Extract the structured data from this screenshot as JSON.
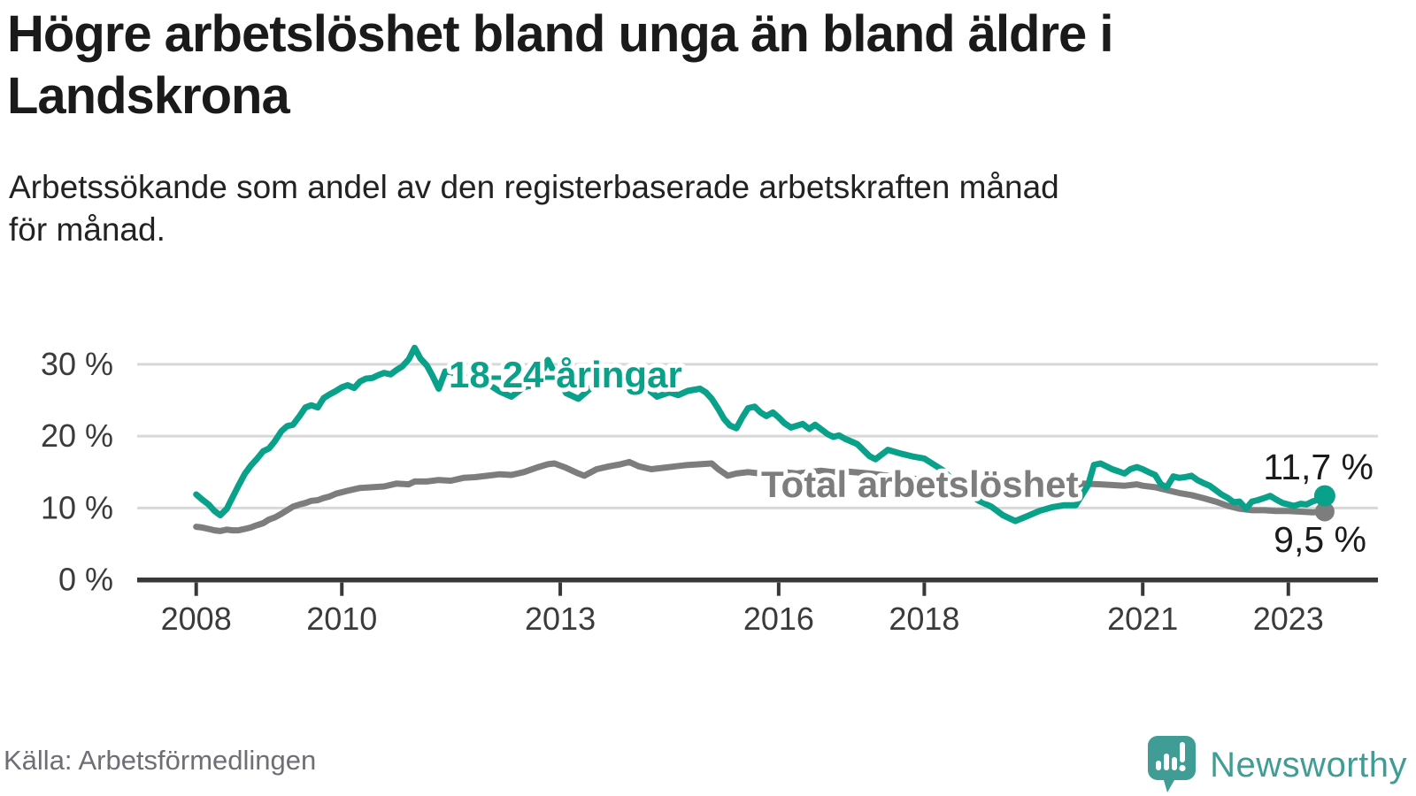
{
  "header": {
    "title": "Högre arbetslöshet bland unga än bland äldre i Landskrona",
    "subtitle": "Arbetssökande som andel av den registerbaserade arbetskraften månad\nför månad."
  },
  "footer": {
    "source": "Källa: Arbetsförmedlingen",
    "brand_name": "Newsworthy"
  },
  "palette": {
    "accent_teal": "#0aa18a",
    "neutral_gray": "#7d7d7d",
    "grid_gray": "#d8d8d8",
    "axis_dark": "#383838",
    "tick_text": "#3b3b3b",
    "end_label_text": "#1b1b1b",
    "source_text": "#6e6e74",
    "brand_teal": "#3f9d95"
  },
  "chart_data": {
    "type": "line",
    "title": "Högre arbetslöshet bland unga än bland äldre i Landskrona",
    "subtitle": "Arbetssökande som andel av den registerbaserade arbetskraften månad för månad.",
    "grid": "horizontal",
    "legend_position": "inline-labels",
    "x_axis": {
      "ticks": [
        2008,
        2010,
        2013,
        2016,
        2018,
        2021,
        2023
      ],
      "tick_labels": [
        "2008",
        "2010",
        "2013",
        "2016",
        "2018",
        "2021",
        "2023"
      ],
      "range": [
        2007.75,
        2023.9
      ]
    },
    "y_axis": {
      "ticks": [
        0,
        10,
        20,
        30
      ],
      "tick_labels": [
        "0 %",
        "10 %",
        "20 %",
        "30 %"
      ],
      "range": [
        0,
        33
      ],
      "unit": "%"
    },
    "series": [
      {
        "name": "Total arbetslöshet",
        "color": "#7d7d7d",
        "end_label": "9,5 %",
        "end_value": 9.5,
        "points": [
          [
            2008,
            7.4
          ],
          [
            2008.08,
            7.3
          ],
          [
            2008.17,
            7.1
          ],
          [
            2008.25,
            6.9
          ],
          [
            2008.33,
            6.8
          ],
          [
            2008.42,
            7
          ],
          [
            2008.5,
            6.9
          ],
          [
            2008.58,
            6.9
          ],
          [
            2008.67,
            7.1
          ],
          [
            2008.75,
            7.3
          ],
          [
            2008.83,
            7.6
          ],
          [
            2008.92,
            7.9
          ],
          [
            2009,
            8.4
          ],
          [
            2009.08,
            8.7
          ],
          [
            2009.17,
            9.2
          ],
          [
            2009.25,
            9.7
          ],
          [
            2009.33,
            10.2
          ],
          [
            2009.42,
            10.5
          ],
          [
            2009.5,
            10.7
          ],
          [
            2009.58,
            11
          ],
          [
            2009.67,
            11.1
          ],
          [
            2009.75,
            11.4
          ],
          [
            2009.83,
            11.6
          ],
          [
            2009.92,
            12
          ],
          [
            2010.08,
            12.4
          ],
          [
            2010.25,
            12.8
          ],
          [
            2010.42,
            12.9
          ],
          [
            2010.58,
            13
          ],
          [
            2010.75,
            13.4
          ],
          [
            2010.92,
            13.3
          ],
          [
            2011,
            13.7
          ],
          [
            2011.17,
            13.7
          ],
          [
            2011.33,
            13.9
          ],
          [
            2011.5,
            13.8
          ],
          [
            2011.67,
            14.2
          ],
          [
            2011.83,
            14.3
          ],
          [
            2012,
            14.5
          ],
          [
            2012.17,
            14.7
          ],
          [
            2012.33,
            14.6
          ],
          [
            2012.5,
            15
          ],
          [
            2012.67,
            15.6
          ],
          [
            2012.83,
            16.1
          ],
          [
            2012.92,
            16.2
          ],
          [
            2013.08,
            15.6
          ],
          [
            2013.25,
            14.8
          ],
          [
            2013.33,
            14.5
          ],
          [
            2013.5,
            15.4
          ],
          [
            2013.67,
            15.8
          ],
          [
            2013.83,
            16.1
          ],
          [
            2013.95,
            16.4
          ],
          [
            2014.08,
            15.8
          ],
          [
            2014.25,
            15.4
          ],
          [
            2014.42,
            15.6
          ],
          [
            2014.58,
            15.8
          ],
          [
            2014.75,
            16
          ],
          [
            2014.92,
            16.1
          ],
          [
            2015.08,
            16.2
          ],
          [
            2015.17,
            15.4
          ],
          [
            2015.3,
            14.5
          ],
          [
            2015.42,
            14.8
          ],
          [
            2015.58,
            15
          ],
          [
            2015.75,
            14.8
          ],
          [
            2015.92,
            15.2
          ],
          [
            2016.08,
            15
          ],
          [
            2016.25,
            14.8
          ],
          [
            2016.42,
            15
          ],
          [
            2016.58,
            15.2
          ],
          [
            2016.75,
            15
          ],
          [
            2016.92,
            15.1
          ],
          [
            2017.25,
            14.8
          ],
          [
            2017.58,
            14.4
          ],
          [
            2017.92,
            14
          ],
          [
            2018.25,
            13.6
          ],
          [
            2018.58,
            13.1
          ],
          [
            2018.92,
            12.8
          ],
          [
            2019.25,
            12.6
          ],
          [
            2019.58,
            12.5
          ],
          [
            2019.92,
            12.7
          ],
          [
            2020.17,
            13.4
          ],
          [
            2020.42,
            13.3
          ],
          [
            2020.58,
            13.2
          ],
          [
            2020.75,
            13.1
          ],
          [
            2020.92,
            13.3
          ],
          [
            2021,
            13.1
          ],
          [
            2021.17,
            12.9
          ],
          [
            2021.33,
            12.5
          ],
          [
            2021.5,
            12.1
          ],
          [
            2021.67,
            11.8
          ],
          [
            2021.83,
            11.4
          ],
          [
            2022,
            10.9
          ],
          [
            2022.17,
            10.3
          ],
          [
            2022.33,
            9.9
          ],
          [
            2022.5,
            9.7
          ],
          [
            2022.67,
            9.7
          ],
          [
            2022.83,
            9.6
          ],
          [
            2023,
            9.6
          ],
          [
            2023.17,
            9.5
          ],
          [
            2023.33,
            9.4
          ],
          [
            2023.5,
            9.5
          ]
        ]
      },
      {
        "name": "18-24-åringar",
        "color": "#0aa18a",
        "end_label": "11,7 %",
        "end_value": 11.7,
        "points": [
          [
            2008,
            11.9
          ],
          [
            2008.08,
            11.2
          ],
          [
            2008.17,
            10.5
          ],
          [
            2008.25,
            9.6
          ],
          [
            2008.33,
            9
          ],
          [
            2008.42,
            9.9
          ],
          [
            2008.5,
            11.5
          ],
          [
            2008.58,
            13.1
          ],
          [
            2008.67,
            14.8
          ],
          [
            2008.75,
            15.9
          ],
          [
            2008.83,
            16.8
          ],
          [
            2008.92,
            17.9
          ],
          [
            2009,
            18.3
          ],
          [
            2009.08,
            19.3
          ],
          [
            2009.17,
            20.7
          ],
          [
            2009.25,
            21.4
          ],
          [
            2009.33,
            21.6
          ],
          [
            2009.42,
            22.8
          ],
          [
            2009.5,
            24
          ],
          [
            2009.58,
            24.3
          ],
          [
            2009.67,
            24
          ],
          [
            2009.75,
            25.3
          ],
          [
            2009.83,
            25.8
          ],
          [
            2009.92,
            26.3
          ],
          [
            2010,
            26.8
          ],
          [
            2010.08,
            27.1
          ],
          [
            2010.17,
            26.7
          ],
          [
            2010.25,
            27.6
          ],
          [
            2010.33,
            28
          ],
          [
            2010.42,
            28.1
          ],
          [
            2010.5,
            28.5
          ],
          [
            2010.58,
            28.8
          ],
          [
            2010.67,
            28.6
          ],
          [
            2010.75,
            29.2
          ],
          [
            2010.83,
            29.7
          ],
          [
            2010.92,
            30.7
          ],
          [
            2011,
            32.3
          ],
          [
            2011.08,
            30.8
          ],
          [
            2011.17,
            29.8
          ],
          [
            2011.25,
            28.3
          ],
          [
            2011.33,
            26.6
          ],
          [
            2011.42,
            29
          ],
          [
            2011.5,
            28.9
          ],
          [
            2011.67,
            28.3
          ],
          [
            2011.83,
            27.7
          ],
          [
            2012,
            27.3
          ],
          [
            2012.17,
            26.2
          ],
          [
            2012.33,
            25.5
          ],
          [
            2012.5,
            26.8
          ],
          [
            2012.67,
            27.2
          ],
          [
            2012.83,
            30.6
          ],
          [
            2012.92,
            28.8
          ],
          [
            2013,
            27.4
          ],
          [
            2013.08,
            26
          ],
          [
            2013.25,
            25.2
          ],
          [
            2013.42,
            26.7
          ],
          [
            2013.58,
            27.1
          ],
          [
            2013.75,
            27
          ],
          [
            2013.92,
            27.3
          ],
          [
            2014.08,
            27.4
          ],
          [
            2014.17,
            26.8
          ],
          [
            2014.33,
            25.5
          ],
          [
            2014.5,
            26.1
          ],
          [
            2014.62,
            25.7
          ],
          [
            2014.75,
            26.3
          ],
          [
            2014.92,
            26.6
          ],
          [
            2015,
            26.1
          ],
          [
            2015.08,
            25.2
          ],
          [
            2015.17,
            23.8
          ],
          [
            2015.25,
            22.4
          ],
          [
            2015.33,
            21.5
          ],
          [
            2015.42,
            21.1
          ],
          [
            2015.5,
            22.6
          ],
          [
            2015.58,
            23.9
          ],
          [
            2015.67,
            24.1
          ],
          [
            2015.75,
            23.3
          ],
          [
            2015.83,
            22.8
          ],
          [
            2015.92,
            23.3
          ],
          [
            2016,
            22.6
          ],
          [
            2016.08,
            21.8
          ],
          [
            2016.17,
            21.2
          ],
          [
            2016.33,
            21.7
          ],
          [
            2016.42,
            21
          ],
          [
            2016.5,
            21.6
          ],
          [
            2016.67,
            20.3
          ],
          [
            2016.75,
            19.9
          ],
          [
            2016.83,
            20.1
          ],
          [
            2016.92,
            19.6
          ],
          [
            2017.08,
            18.9
          ],
          [
            2017.25,
            17.2
          ],
          [
            2017.33,
            16.8
          ],
          [
            2017.5,
            18.1
          ],
          [
            2017.67,
            17.6
          ],
          [
            2017.83,
            17.2
          ],
          [
            2018,
            16.9
          ],
          [
            2018.25,
            15.3
          ],
          [
            2018.5,
            12.8
          ],
          [
            2018.75,
            11
          ],
          [
            2018.92,
            10.2
          ],
          [
            2019.08,
            9
          ],
          [
            2019.25,
            8.2
          ],
          [
            2019.42,
            8.9
          ],
          [
            2019.58,
            9.6
          ],
          [
            2019.75,
            10.1
          ],
          [
            2019.92,
            10.4
          ],
          [
            2020.08,
            10.4
          ],
          [
            2020.25,
            13.2
          ],
          [
            2020.33,
            16
          ],
          [
            2020.42,
            16.2
          ],
          [
            2020.5,
            15.8
          ],
          [
            2020.58,
            15.4
          ],
          [
            2020.67,
            15.1
          ],
          [
            2020.75,
            14.8
          ],
          [
            2020.83,
            15.4
          ],
          [
            2020.92,
            15.7
          ],
          [
            2021,
            15.4
          ],
          [
            2021.08,
            15
          ],
          [
            2021.17,
            14.6
          ],
          [
            2021.25,
            13.3
          ],
          [
            2021.33,
            12.9
          ],
          [
            2021.42,
            14.4
          ],
          [
            2021.5,
            14.2
          ],
          [
            2021.58,
            14.3
          ],
          [
            2021.67,
            14.5
          ],
          [
            2021.75,
            13.9
          ],
          [
            2021.83,
            13.5
          ],
          [
            2021.92,
            13.1
          ],
          [
            2022,
            12.5
          ],
          [
            2022.08,
            11.9
          ],
          [
            2022.17,
            11.4
          ],
          [
            2022.25,
            10.8
          ],
          [
            2022.33,
            10.9
          ],
          [
            2022.42,
            9.9
          ],
          [
            2022.5,
            10.9
          ],
          [
            2022.58,
            11.1
          ],
          [
            2022.67,
            11.4
          ],
          [
            2022.75,
            11.7
          ],
          [
            2022.83,
            11.2
          ],
          [
            2022.92,
            10.7
          ],
          [
            2023,
            10.5
          ],
          [
            2023.08,
            10.3
          ],
          [
            2023.17,
            10.6
          ],
          [
            2023.25,
            10.5
          ],
          [
            2023.33,
            10.9
          ],
          [
            2023.42,
            11.2
          ],
          [
            2023.5,
            11.7
          ]
        ]
      }
    ]
  }
}
